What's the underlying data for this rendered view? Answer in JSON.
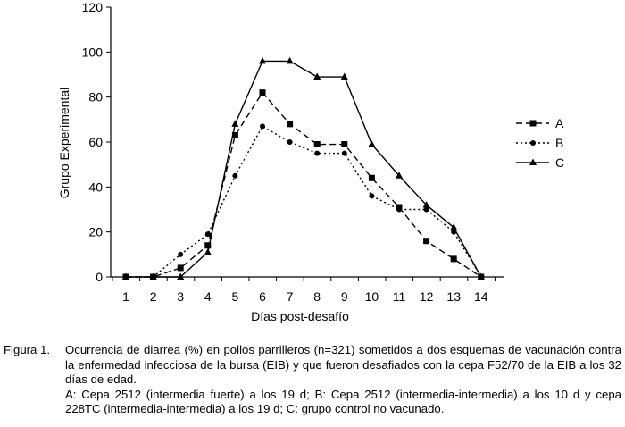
{
  "chart_data": {
    "type": "line",
    "x": [
      1,
      2,
      3,
      4,
      5,
      6,
      7,
      8,
      9,
      10,
      11,
      12,
      13,
      14
    ],
    "xlabel": "Días post-desafío",
    "ylabel": "Grupo Experimental",
    "ylim": [
      0,
      120
    ],
    "yticks": [
      0,
      20,
      40,
      60,
      80,
      100,
      120
    ],
    "grid": false,
    "legend_position": "right",
    "series": [
      {
        "name": "A",
        "marker": "square",
        "line": "dashed",
        "values": [
          0,
          0,
          4,
          14,
          63,
          82,
          68,
          59,
          59,
          44,
          31,
          16,
          8,
          0
        ]
      },
      {
        "name": "B",
        "marker": "circle",
        "line": "dotted",
        "values": [
          0,
          0,
          10,
          19,
          45,
          67,
          60,
          55,
          55,
          36,
          30,
          30,
          20,
          0
        ]
      },
      {
        "name": "C",
        "marker": "triangle",
        "line": "solid",
        "values": [
          0,
          0,
          0,
          11,
          68,
          96,
          96,
          89,
          89,
          59,
          45,
          32,
          22,
          0
        ]
      }
    ]
  },
  "caption": {
    "label": "Figura 1.",
    "text": "Ocurrencia de diarrea (%) en pollos parrilleros (n=321) sometidos a dos esquemas de vacunación contra la enfermedad infecciosa de la bursa (EIB) y que fueron desafiados con la cepa F52/70 de la EIB a los 32 días de edad.",
    "legend_text": "A: Cepa 2512 (intermedia fuerte) a los 19 d; B: Cepa 2512 (intermedia-intermedia) a los 10 d y cepa 228TC (intermedia-intermedia) a los 19 d; C: grupo control no vacunado."
  }
}
